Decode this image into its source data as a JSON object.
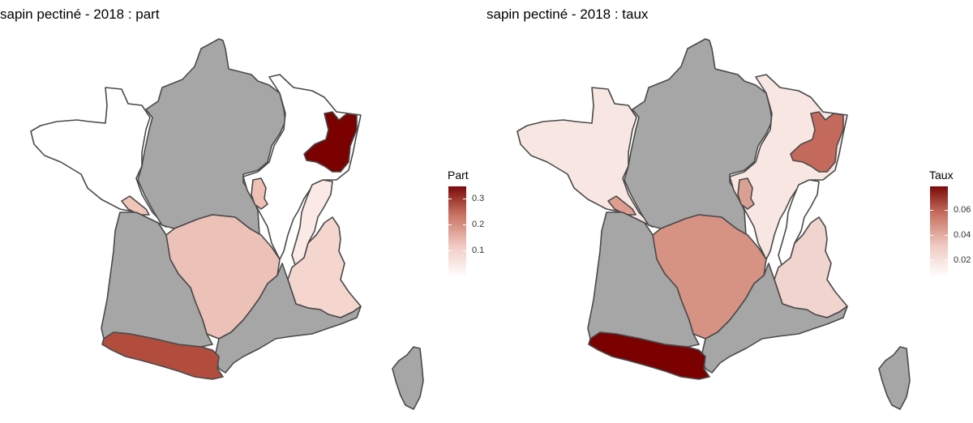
{
  "panels": [
    {
      "title": "sapin pectiné - 2018 : part",
      "legend": {
        "title": "Part",
        "ticks": [
          "0.3",
          "0.2",
          "0.1"
        ],
        "range": [
          0.0,
          0.35
        ]
      },
      "regions": {
        "nord_centre": {
          "color": "#a6a6a6"
        },
        "ouest": {
          "color": "#ffffff"
        },
        "nord_est": {
          "color": "#ffffff"
        },
        "vosges": {
          "color": "#7b0000"
        },
        "jura_petit": {
          "color": "#efc0b4"
        },
        "loire_petit": {
          "color": "#f0c6ba"
        },
        "massif_central": {
          "color": "#ecc1b8"
        },
        "alpes": {
          "color": "#f4d6ce"
        },
        "jura_est": {
          "color": "#fbe9e5"
        },
        "sud_ouest": {
          "color": "#a6a6a6"
        },
        "sud_est": {
          "color": "#a6a6a6"
        },
        "pyrenees": {
          "color": "#b24d3e"
        },
        "corse": {
          "color": "#a6a6a6"
        }
      }
    },
    {
      "title": "sapin pectiné - 2018 : taux",
      "legend": {
        "title": "Taux",
        "ticks": [
          "0.06",
          "0.04",
          "0.02"
        ],
        "range": [
          0.0,
          0.078
        ]
      },
      "regions": {
        "nord_centre": {
          "color": "#a6a6a6"
        },
        "ouest": {
          "color": "#f7e6e2"
        },
        "nord_est": {
          "color": "#f7e6e2"
        },
        "vosges": {
          "color": "#c46a5c"
        },
        "jura_petit": {
          "color": "#dba094"
        },
        "loire_petit": {
          "color": "#df9d8f"
        },
        "massif_central": {
          "color": "#d69283"
        },
        "alpes": {
          "color": "#f1d4cd"
        },
        "jura_est": {
          "color": "#ffffff"
        },
        "sud_ouest": {
          "color": "#a6a6a6"
        },
        "sud_est": {
          "color": "#a6a6a6"
        },
        "pyrenees": {
          "color": "#7b0000"
        },
        "corse": {
          "color": "#a6a6a6"
        }
      }
    }
  ]
}
